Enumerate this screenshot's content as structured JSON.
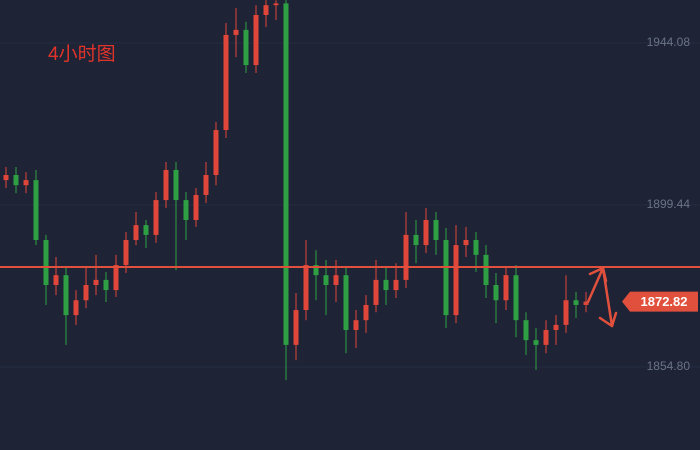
{
  "chart_data": {
    "type": "candlestick",
    "title": "4小时图",
    "ylim": [
      1831.93,
      1955.93
    ],
    "yticks": [
      {
        "value": 1854.8,
        "label": "1854.80"
      },
      1899.44,
      1944.08
    ],
    "level": 1882.35,
    "current_price": 1872.82,
    "up_color": "#e0463a",
    "down_color": "#2ea043",
    "level_color": "#e0503c",
    "open": [
      1906.3,
      1907.7,
      1904.9,
      1906.3,
      1889.8,
      1877.4,
      1880.1,
      1869.1,
      1873.2,
      1877.4,
      1878.8,
      1876.0,
      1882.9,
      1889.8,
      1893.9,
      1891.2,
      1900.8,
      1909.1,
      1900.8,
      1895.3,
      1902.2,
      1907.7,
      1920.1,
      1946.3,
      1947.7,
      1938.0,
      1951.8,
      1954.5,
      1955.0,
      1860.9,
      1870.5,
      1882.9,
      1880.1,
      1877.4,
      1880.1,
      1865.0,
      1867.7,
      1871.9,
      1878.8,
      1876.0,
      1878.8,
      1891.2,
      1888.4,
      1895.3,
      1889.8,
      1869.1,
      1888.4,
      1889.8,
      1885.7,
      1877.4,
      1873.2,
      1880.1,
      1867.7,
      1862.2,
      1860.9,
      1865.0,
      1866.4,
      1873.2,
      1871.9
    ],
    "high": [
      1909.9,
      1909.9,
      1908.5,
      1909.1,
      1891.2,
      1885.1,
      1882.3,
      1876.0,
      1882.3,
      1885.7,
      1881.0,
      1885.7,
      1892.0,
      1897.5,
      1895.3,
      1903.0,
      1911.3,
      1911.3,
      1903.0,
      1904.1,
      1911.3,
      1922.3,
      1949.6,
      1953.7,
      1949.9,
      1954.5,
      1955.9,
      1955.9,
      1955.9,
      1875.2,
      1889.8,
      1887.0,
      1884.3,
      1884.3,
      1882.3,
      1870.5,
      1874.6,
      1884.3,
      1882.3,
      1883.4,
      1897.5,
      1895.3,
      1898.6,
      1897.5,
      1893.1,
      1893.9,
      1893.4,
      1892.0,
      1888.4,
      1880.7,
      1882.3,
      1882.9,
      1869.9,
      1865.5,
      1867.7,
      1869.1,
      1880.1,
      1875.5,
      1875.5
    ],
    "low": [
      1904.1,
      1902.7,
      1902.7,
      1888.4,
      1871.9,
      1874.6,
      1860.9,
      1866.4,
      1871.0,
      1874.6,
      1872.7,
      1874.1,
      1880.7,
      1888.4,
      1887.6,
      1889.0,
      1898.6,
      1881.5,
      1889.8,
      1893.4,
      1900.0,
      1904.9,
      1917.9,
      1940.2,
      1935.8,
      1935.8,
      1948.5,
      1950.4,
      1851.2,
      1856.7,
      1867.7,
      1873.2,
      1869.1,
      1872.7,
      1858.6,
      1860.0,
      1864.2,
      1869.9,
      1871.9,
      1873.8,
      1876.6,
      1883.4,
      1886.2,
      1885.7,
      1865.5,
      1866.9,
      1885.1,
      1881.0,
      1873.8,
      1866.9,
      1870.5,
      1863.0,
      1858.1,
      1854.0,
      1858.6,
      1860.9,
      1864.2,
      1868.3,
      1869.9
    ],
    "close": [
      1907.7,
      1904.9,
      1906.3,
      1889.8,
      1877.4,
      1880.1,
      1869.1,
      1873.2,
      1877.4,
      1878.8,
      1876.0,
      1882.9,
      1889.8,
      1893.9,
      1891.2,
      1900.8,
      1909.1,
      1900.8,
      1895.3,
      1902.2,
      1907.7,
      1920.1,
      1946.3,
      1947.7,
      1938.0,
      1951.8,
      1954.5,
      1955.0,
      1860.9,
      1870.5,
      1882.9,
      1880.1,
      1877.4,
      1880.1,
      1865.0,
      1867.7,
      1871.9,
      1878.8,
      1876.0,
      1878.8,
      1891.2,
      1888.4,
      1895.3,
      1889.8,
      1869.1,
      1888.4,
      1889.8,
      1885.7,
      1877.4,
      1873.2,
      1880.1,
      1867.7,
      1862.2,
      1860.9,
      1865.0,
      1866.4,
      1873.2,
      1871.9,
      1872.82
    ]
  }
}
